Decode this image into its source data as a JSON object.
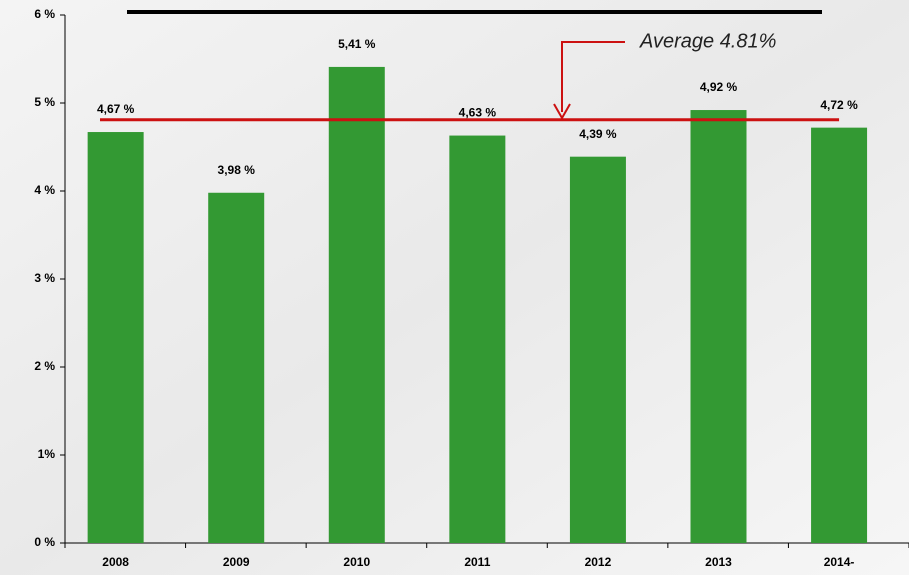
{
  "chart_data": {
    "type": "bar",
    "categories": [
      "2008",
      "2009",
      "2010",
      "2011",
      "2012",
      "2013",
      "2014-"
    ],
    "values": [
      4.67,
      3.98,
      5.41,
      4.63,
      4.39,
      4.92,
      4.72
    ],
    "value_labels": [
      "4,67 %",
      "3,98 %",
      "5,41 %",
      "4,63 %",
      "4,39 %",
      "4,92 %",
      "4,72 %"
    ],
    "color": "#339933",
    "ylim": [
      0,
      6
    ],
    "yticks": [
      {
        "value": 0,
        "label": "0 %"
      },
      {
        "value": 1,
        "label": "1%"
      },
      {
        "value": 2,
        "label": "2 %"
      },
      {
        "value": 3,
        "label": "3 %"
      },
      {
        "value": 4,
        "label": "4 %"
      },
      {
        "value": 5,
        "label": "5 %"
      },
      {
        "value": 6,
        "label": "6 %"
      }
    ],
    "average": 4.81,
    "average_color": "#cc1111",
    "annotation": "Average 4.81%"
  }
}
